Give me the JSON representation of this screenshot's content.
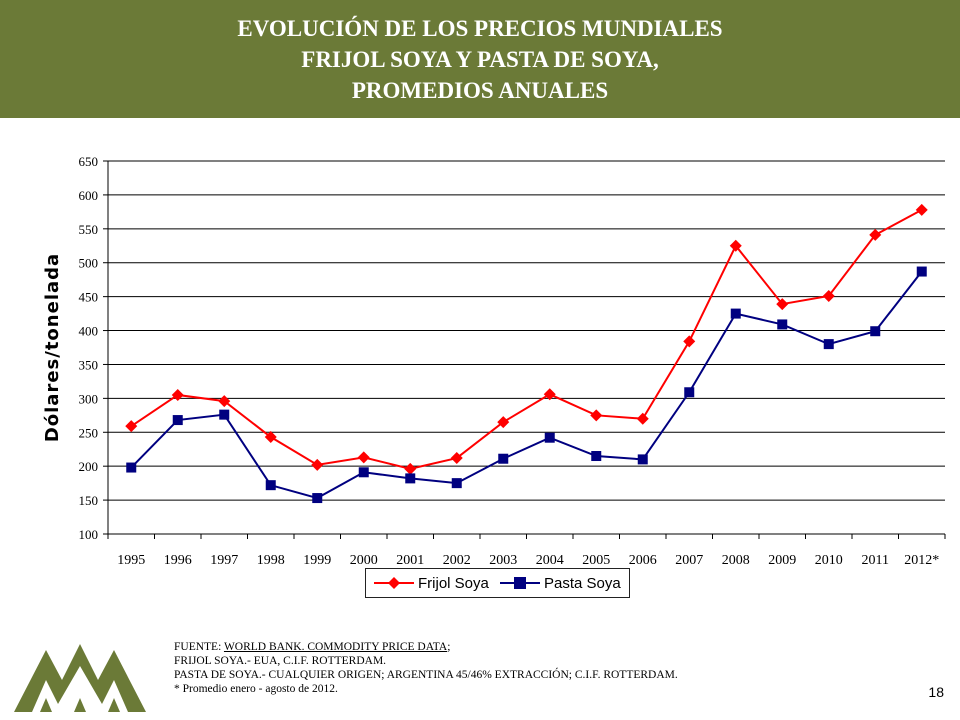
{
  "header": {
    "title_line1": "EVOLUCIÓN DE LOS PRECIOS MUNDIALES",
    "title_line2": "FRIJOL SOYA Y PASTA DE SOYA,",
    "title_line3": "PROMEDIOS ANUALES",
    "background_color": "#6b7a37"
  },
  "chart_data": {
    "type": "line",
    "ylabel": "Dólares/tonelada",
    "xlabel": "",
    "ylim": [
      100,
      650
    ],
    "yticks": [
      100,
      150,
      200,
      250,
      300,
      350,
      400,
      450,
      500,
      550,
      600,
      650
    ],
    "grid": true,
    "legend_position": "bottom",
    "categories": [
      "1995",
      "1996",
      "1997",
      "1998",
      "1999",
      "2000",
      "2001",
      "2002",
      "2003",
      "2004",
      "2005",
      "2006",
      "2007",
      "2008",
      "2009",
      "2010",
      "2011",
      "2012*"
    ],
    "series": [
      {
        "name": "Frijol Soya",
        "color": "#ff0000",
        "marker": "diamond",
        "values": [
          259,
          305,
          296,
          243,
          202,
          213,
          196,
          212,
          265,
          306,
          275,
          270,
          384,
          525,
          439,
          451,
          541,
          578
        ]
      },
      {
        "name": "Pasta Soya",
        "color": "#000080",
        "marker": "square",
        "values": [
          198,
          268,
          276,
          172,
          153,
          191,
          182,
          175,
          211,
          242,
          215,
          210,
          309,
          425,
          409,
          380,
          399,
          487
        ]
      }
    ]
  },
  "footer": {
    "source_prefix": "FUENTE: ",
    "source_link": "WORLD BANK. COMMODITY PRICE DATA",
    "source_suffix": ";",
    "line2": "FRIJOL SOYA.- EUA, C.I.F. ROTTERDAM.",
    "line3": "PASTA DE SOYA.- CUALQUIER ORIGEN; ARGENTINA 45/46% EXTRACCIÓN; C.I.F. ROTTERDAM.",
    "line4": " * Promedio enero - agosto de 2012."
  },
  "page_number": "18",
  "logo": {
    "icon": "mountains-logo-icon",
    "color": "#6b7a37"
  }
}
